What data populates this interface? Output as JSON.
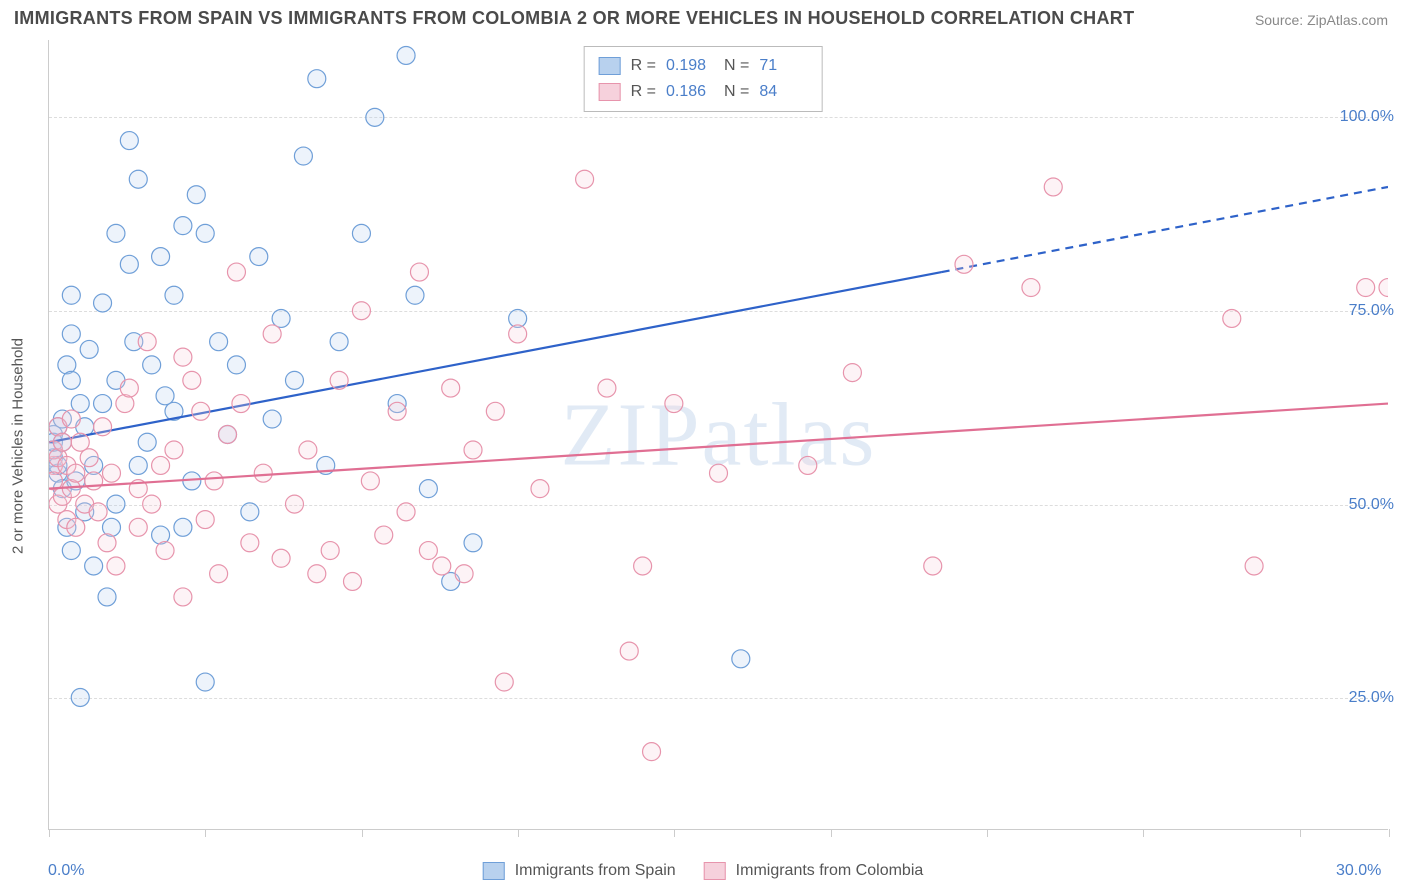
{
  "title": "IMMIGRANTS FROM SPAIN VS IMMIGRANTS FROM COLOMBIA 2 OR MORE VEHICLES IN HOUSEHOLD CORRELATION CHART",
  "source": "Source: ZipAtlas.com",
  "ylabel": "2 or more Vehicles in Household",
  "watermark": "ZIPatlas",
  "chart": {
    "type": "scatter",
    "xlim": [
      0,
      30
    ],
    "ylim": [
      8,
      110
    ],
    "xticks": [
      0,
      3.5,
      7,
      10.5,
      14,
      17.5,
      21,
      24.5,
      28,
      30
    ],
    "xtick_labels": {
      "0": "0.0%",
      "30": "30.0%"
    },
    "yticks": [
      25,
      50,
      75,
      100
    ],
    "ytick_labels": [
      "25.0%",
      "50.0%",
      "75.0%",
      "100.0%"
    ],
    "grid_color": "#e0e0e0",
    "background_color": "#ffffff",
    "point_radius": 9,
    "point_stroke_width": 1.2,
    "point_fill_opacity": 0.25,
    "series": [
      {
        "name": "Immigrants from Spain",
        "color_fill": "#b8d1ee",
        "color_stroke": "#6f9fd8",
        "R": "0.198",
        "N": "71",
        "trend": {
          "x1": 0,
          "y1": 58,
          "x2": 20,
          "y2": 80,
          "x_solid_end": 20,
          "x_dash_end": 30,
          "y_dash_end": 91,
          "color": "#2e62c9",
          "width": 2.2
        },
        "points": [
          [
            0.1,
            59
          ],
          [
            0.1,
            56
          ],
          [
            0.1,
            57
          ],
          [
            0.1,
            58
          ],
          [
            0.2,
            60
          ],
          [
            0.2,
            54
          ],
          [
            0.2,
            55
          ],
          [
            0.3,
            52
          ],
          [
            0.3,
            58
          ],
          [
            0.3,
            61
          ],
          [
            0.4,
            47
          ],
          [
            0.4,
            68
          ],
          [
            0.5,
            72
          ],
          [
            0.5,
            66
          ],
          [
            0.5,
            77
          ],
          [
            0.5,
            44
          ],
          [
            0.6,
            53
          ],
          [
            0.7,
            63
          ],
          [
            0.7,
            25
          ],
          [
            0.8,
            49
          ],
          [
            0.8,
            60
          ],
          [
            0.9,
            70
          ],
          [
            1.0,
            42
          ],
          [
            1.0,
            55
          ],
          [
            1.2,
            76
          ],
          [
            1.2,
            63
          ],
          [
            1.3,
            38
          ],
          [
            1.4,
            47
          ],
          [
            1.5,
            85
          ],
          [
            1.5,
            66
          ],
          [
            1.5,
            50
          ],
          [
            1.8,
            81
          ],
          [
            1.8,
            97
          ],
          [
            1.9,
            71
          ],
          [
            2.0,
            92
          ],
          [
            2.0,
            55
          ],
          [
            2.2,
            58
          ],
          [
            2.3,
            68
          ],
          [
            2.5,
            82
          ],
          [
            2.5,
            46
          ],
          [
            2.6,
            64
          ],
          [
            2.8,
            77
          ],
          [
            2.8,
            62
          ],
          [
            3.0,
            86
          ],
          [
            3.0,
            47
          ],
          [
            3.2,
            53
          ],
          [
            3.3,
            90
          ],
          [
            3.5,
            85
          ],
          [
            3.5,
            27
          ],
          [
            3.8,
            71
          ],
          [
            4.0,
            59
          ],
          [
            4.2,
            68
          ],
          [
            4.5,
            49
          ],
          [
            4.7,
            82
          ],
          [
            5.0,
            61
          ],
          [
            5.2,
            74
          ],
          [
            5.5,
            66
          ],
          [
            5.7,
            95
          ],
          [
            6.0,
            105
          ],
          [
            6.2,
            55
          ],
          [
            6.5,
            71
          ],
          [
            7.0,
            85
          ],
          [
            7.3,
            100
          ],
          [
            7.8,
            63
          ],
          [
            8.2,
            77
          ],
          [
            8.5,
            52
          ],
          [
            9.0,
            40
          ],
          [
            9.5,
            45
          ],
          [
            10.5,
            74
          ],
          [
            15.5,
            30
          ],
          [
            8.0,
            108
          ]
        ]
      },
      {
        "name": "Immigrants from Colombia",
        "color_fill": "#f6d1dc",
        "color_stroke": "#e794ac",
        "R": "0.186",
        "N": "84",
        "trend": {
          "x1": 0,
          "y1": 52,
          "x2": 30,
          "y2": 63,
          "x_solid_end": 30,
          "x_dash_end": 30,
          "y_dash_end": 63,
          "color": "#e06f93",
          "width": 2.2
        },
        "points": [
          [
            0.1,
            55
          ],
          [
            0.1,
            57
          ],
          [
            0.1,
            53
          ],
          [
            0.2,
            60
          ],
          [
            0.2,
            50
          ],
          [
            0.2,
            56
          ],
          [
            0.3,
            51
          ],
          [
            0.3,
            58
          ],
          [
            0.4,
            55
          ],
          [
            0.4,
            48
          ],
          [
            0.5,
            61
          ],
          [
            0.5,
            52
          ],
          [
            0.6,
            54
          ],
          [
            0.6,
            47
          ],
          [
            0.7,
            58
          ],
          [
            0.8,
            50
          ],
          [
            0.9,
            56
          ],
          [
            1.0,
            53
          ],
          [
            1.1,
            49
          ],
          [
            1.2,
            60
          ],
          [
            1.3,
            45
          ],
          [
            1.4,
            54
          ],
          [
            1.5,
            42
          ],
          [
            1.7,
            63
          ],
          [
            1.8,
            65
          ],
          [
            2.0,
            52
          ],
          [
            2.0,
            47
          ],
          [
            2.2,
            71
          ],
          [
            2.3,
            50
          ],
          [
            2.5,
            55
          ],
          [
            2.6,
            44
          ],
          [
            2.8,
            57
          ],
          [
            3.0,
            69
          ],
          [
            3.0,
            38
          ],
          [
            3.2,
            66
          ],
          [
            3.4,
            62
          ],
          [
            3.5,
            48
          ],
          [
            3.7,
            53
          ],
          [
            3.8,
            41
          ],
          [
            4.0,
            59
          ],
          [
            4.2,
            80
          ],
          [
            4.3,
            63
          ],
          [
            4.5,
            45
          ],
          [
            4.8,
            54
          ],
          [
            5.0,
            72
          ],
          [
            5.2,
            43
          ],
          [
            5.5,
            50
          ],
          [
            5.8,
            57
          ],
          [
            6.0,
            41
          ],
          [
            6.3,
            44
          ],
          [
            6.5,
            66
          ],
          [
            6.8,
            40
          ],
          [
            7.0,
            75
          ],
          [
            7.2,
            53
          ],
          [
            7.5,
            46
          ],
          [
            7.8,
            62
          ],
          [
            8.0,
            49
          ],
          [
            8.3,
            80
          ],
          [
            8.5,
            44
          ],
          [
            8.8,
            42
          ],
          [
            9.0,
            65
          ],
          [
            9.3,
            41
          ],
          [
            9.5,
            57
          ],
          [
            10.0,
            62
          ],
          [
            10.2,
            27
          ],
          [
            10.5,
            72
          ],
          [
            11.0,
            52
          ],
          [
            12.0,
            92
          ],
          [
            12.5,
            65
          ],
          [
            13.0,
            31
          ],
          [
            13.3,
            42
          ],
          [
            13.5,
            18
          ],
          [
            14.0,
            63
          ],
          [
            15.0,
            54
          ],
          [
            17.0,
            55
          ],
          [
            18.0,
            67
          ],
          [
            19.8,
            42
          ],
          [
            20.5,
            81
          ],
          [
            22.0,
            78
          ],
          [
            22.5,
            91
          ],
          [
            26.5,
            74
          ],
          [
            27.0,
            42
          ],
          [
            29.5,
            78
          ],
          [
            30.0,
            78
          ]
        ]
      }
    ]
  },
  "legend_top": {
    "rows": [
      {
        "swatch_fill": "#b8d1ee",
        "swatch_stroke": "#6f9fd8",
        "r_label": "R =",
        "r_val": "0.198",
        "n_label": "N =",
        "n_val": "71"
      },
      {
        "swatch_fill": "#f6d1dc",
        "swatch_stroke": "#e794ac",
        "r_label": "R =",
        "r_val": "0.186",
        "n_label": "N =",
        "n_val": "84"
      }
    ]
  },
  "legend_bottom": {
    "items": [
      {
        "swatch_fill": "#b8d1ee",
        "swatch_stroke": "#6f9fd8",
        "label": "Immigrants from Spain"
      },
      {
        "swatch_fill": "#f6d1dc",
        "swatch_stroke": "#e794ac",
        "label": "Immigrants from Colombia"
      }
    ]
  }
}
